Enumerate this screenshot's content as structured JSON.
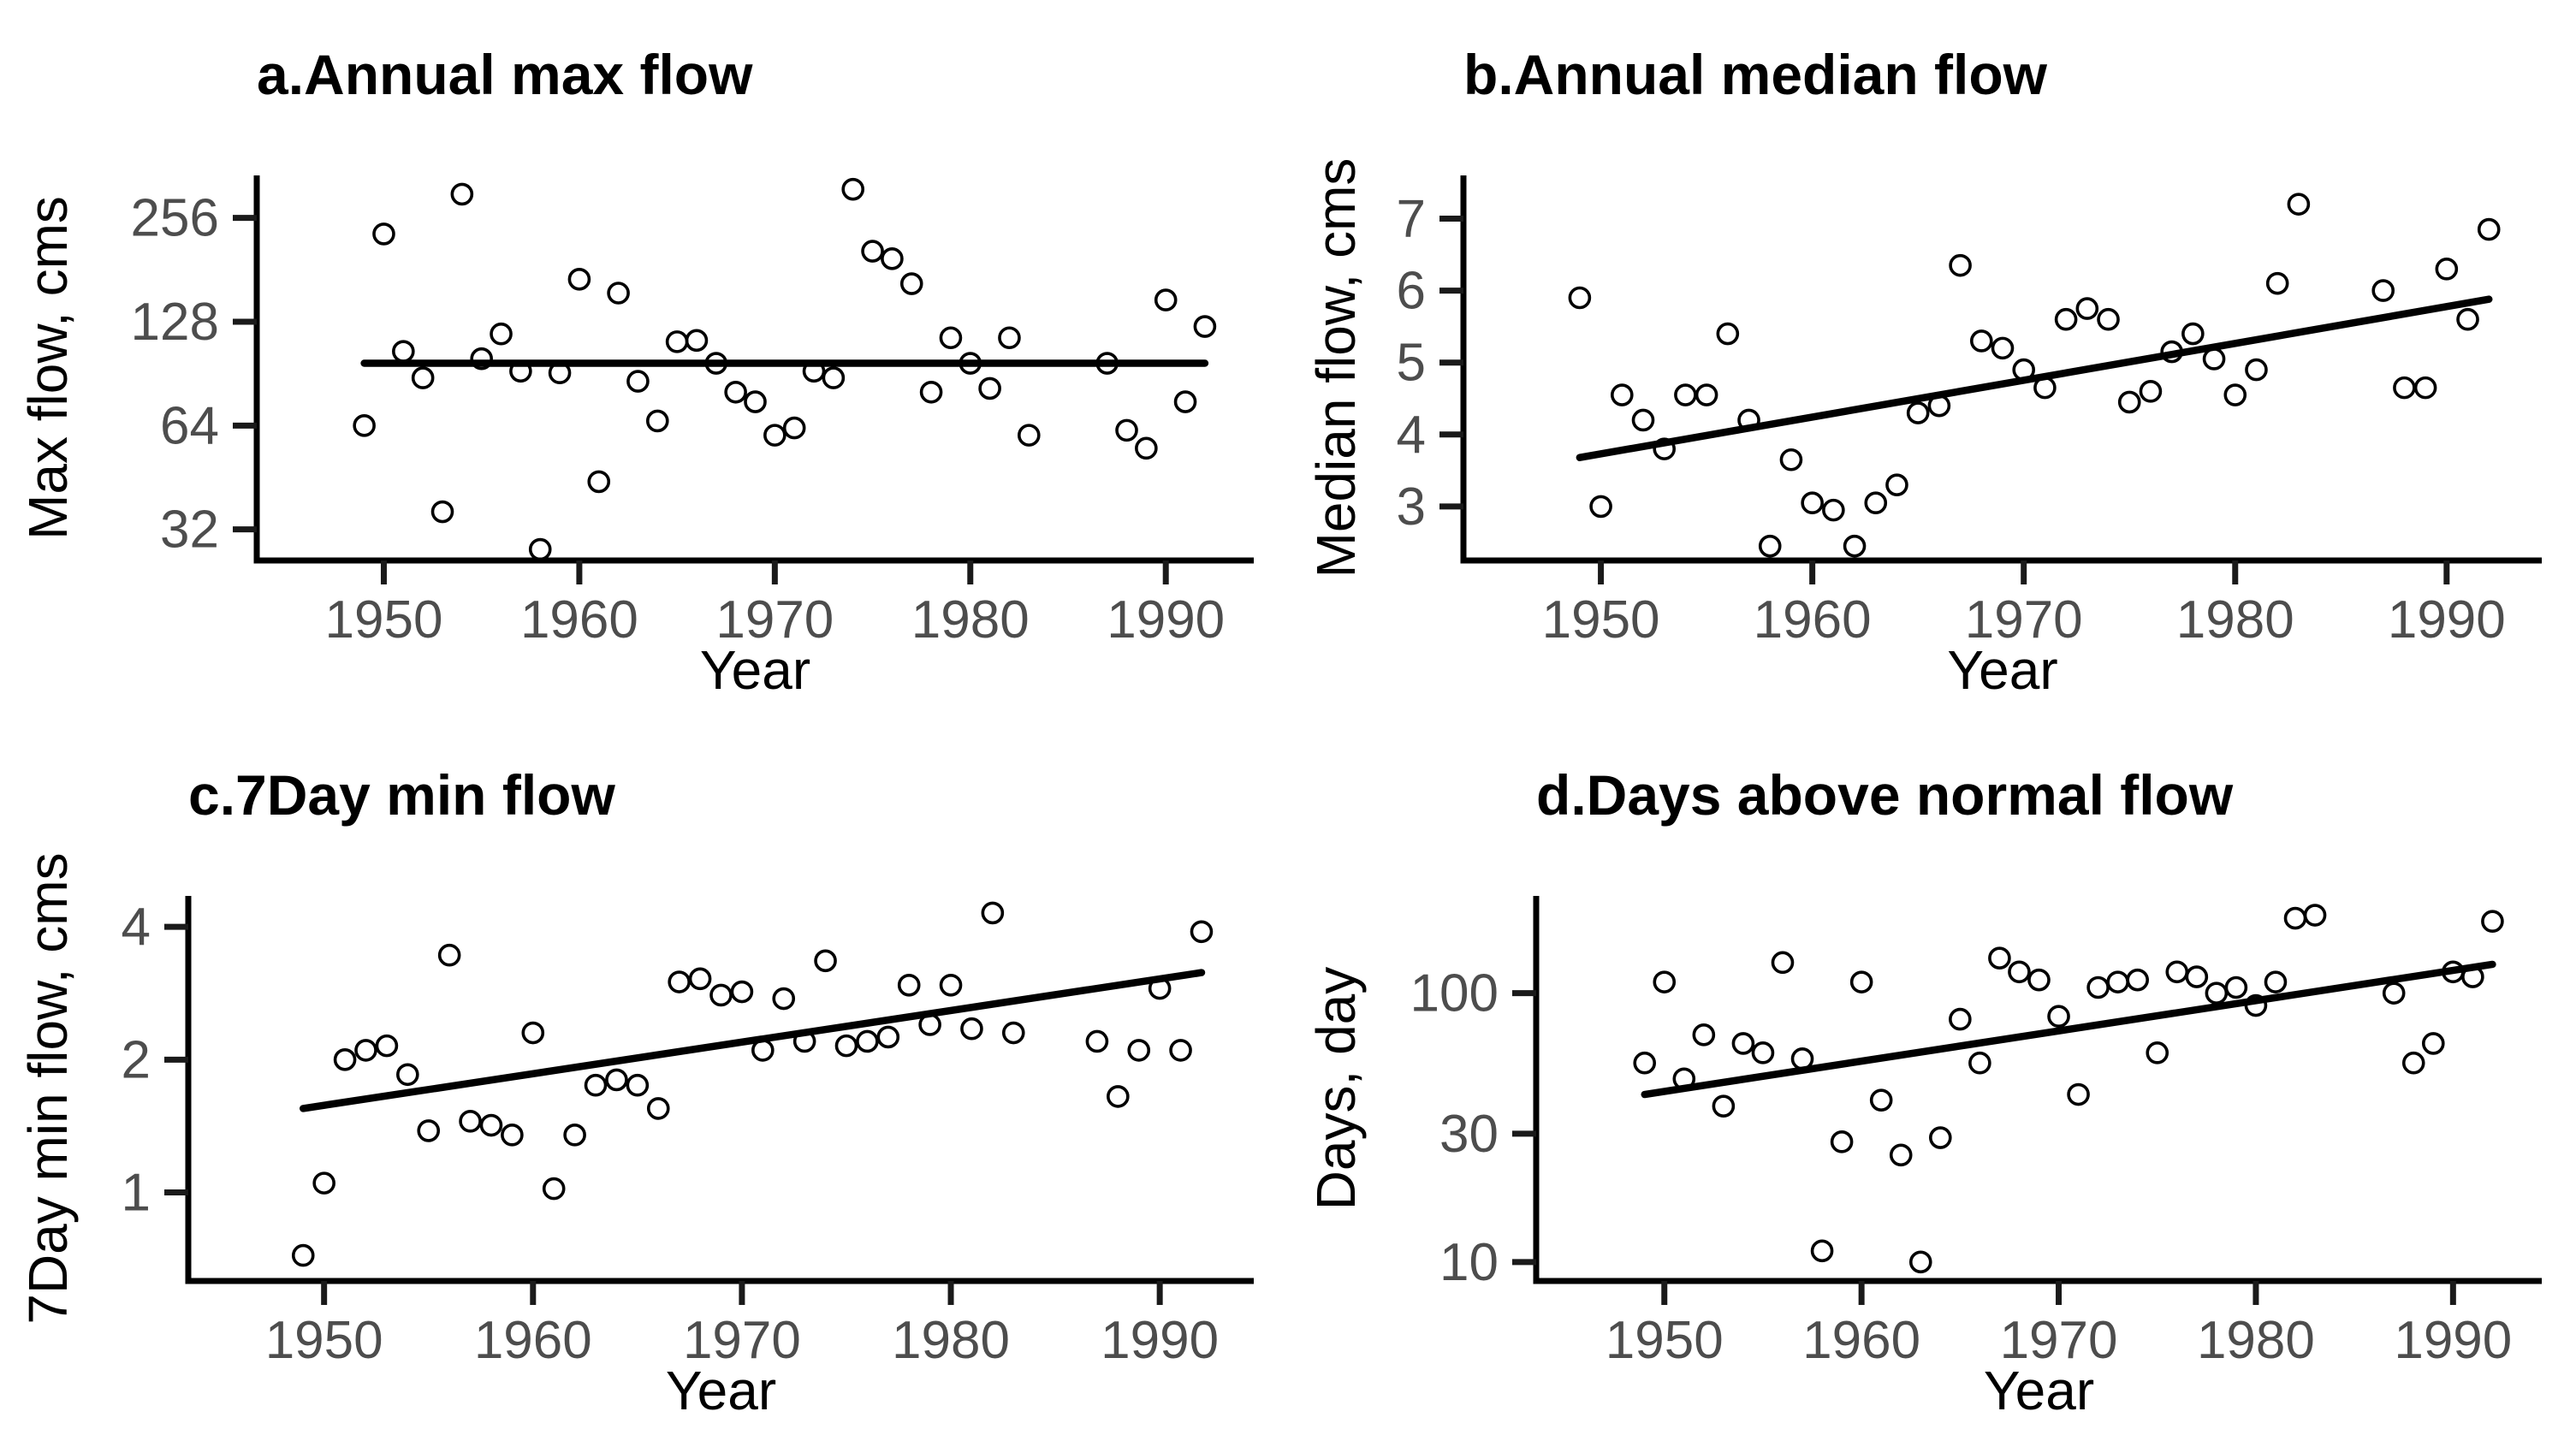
{
  "figure": {
    "background_color": "#ffffff",
    "point_color": "#000000",
    "trend_color": "#000000",
    "tick_label_color": "#4d4d4d",
    "title_color": "#000000"
  },
  "chart_data": [
    {
      "panel": "a",
      "type": "scatter",
      "title": "a.Annual max flow",
      "xlabel": "Year",
      "ylabel": "Max flow, cms",
      "yscale": "log2",
      "yticks": [
        32,
        64,
        128,
        256
      ],
      "ylim": [
        26,
        340
      ],
      "xticks": [
        1950,
        1960,
        1970,
        1980,
        1990
      ],
      "xlim": [
        1943.5,
        1994.5
      ],
      "legend": "none",
      "grid": "off",
      "trend": {
        "x": [
          1949,
          1992
        ],
        "y": [
          97,
          97
        ]
      },
      "x": [
        1949,
        1950,
        1951,
        1952,
        1953,
        1954,
        1955,
        1956,
        1957,
        1958,
        1959,
        1960,
        1961,
        1962,
        1963,
        1964,
        1965,
        1966,
        1967,
        1968,
        1969,
        1970,
        1971,
        1972,
        1973,
        1974,
        1975,
        1976,
        1977,
        1978,
        1979,
        1980,
        1981,
        1982,
        1983,
        1987,
        1988,
        1989,
        1990,
        1991,
        1992
      ],
      "y": [
        64,
        230,
        105,
        88,
        36,
        300,
        100,
        118,
        92,
        28,
        91,
        170,
        44,
        155,
        86,
        66,
        112,
        113,
        97,
        80,
        75,
        60,
        63,
        92,
        88,
        310,
        205,
        195,
        165,
        80,
        115,
        97,
        82,
        115,
        60,
        97,
        62,
        55,
        148,
        75,
        124
      ]
    },
    {
      "panel": "b",
      "type": "scatter",
      "title": "b.Annual median flow",
      "xlabel": "Year",
      "ylabel": "Median flow, cms",
      "yscale": "linear",
      "yticks": [
        3,
        4,
        5,
        6,
        7
      ],
      "ylim": [
        2.25,
        7.6
      ],
      "xticks": [
        1950,
        1960,
        1970,
        1980,
        1990
      ],
      "xlim": [
        1943.5,
        1994.5
      ],
      "legend": "none",
      "grid": "off",
      "trend": {
        "x": [
          1949,
          1992
        ],
        "y": [
          3.68,
          5.88
        ]
      },
      "x": [
        1949,
        1950,
        1951,
        1952,
        1953,
        1954,
        1955,
        1956,
        1957,
        1958,
        1959,
        1960,
        1961,
        1962,
        1963,
        1964,
        1965,
        1966,
        1967,
        1968,
        1969,
        1970,
        1971,
        1972,
        1973,
        1974,
        1975,
        1976,
        1977,
        1978,
        1979,
        1980,
        1981,
        1982,
        1983,
        1987,
        1988,
        1989,
        1990,
        1991,
        1992
      ],
      "y": [
        5.9,
        3.0,
        4.55,
        4.2,
        3.8,
        4.55,
        4.55,
        5.4,
        4.2,
        2.45,
        3.65,
        3.05,
        2.95,
        2.45,
        3.05,
        3.3,
        4.3,
        4.4,
        6.35,
        5.3,
        5.2,
        4.9,
        4.65,
        5.6,
        5.75,
        5.6,
        4.45,
        4.6,
        5.15,
        5.4,
        5.05,
        4.55,
        4.9,
        6.1,
        7.2,
        6.0,
        4.65,
        4.65,
        6.3,
        5.6,
        6.85
      ]
    },
    {
      "panel": "c",
      "type": "scatter",
      "title": "c.7Day min flow",
      "xlabel": "Year",
      "ylabel": "7Day min flow, cms",
      "yscale": "log2",
      "yticks": [
        1,
        2,
        4
      ],
      "ylim": [
        0.63,
        4.7
      ],
      "xticks": [
        1950,
        1960,
        1970,
        1980,
        1990
      ],
      "xlim": [
        1943.5,
        1994.5
      ],
      "legend": "none",
      "grid": "off",
      "trend": {
        "x": [
          1949,
          1992
        ],
        "y": [
          1.55,
          3.15
        ]
      },
      "x": [
        1949,
        1950,
        1951,
        1952,
        1953,
        1954,
        1955,
        1956,
        1957,
        1958,
        1959,
        1960,
        1961,
        1962,
        1963,
        1964,
        1965,
        1966,
        1967,
        1968,
        1969,
        1970,
        1971,
        1972,
        1973,
        1974,
        1975,
        1976,
        1977,
        1978,
        1979,
        1980,
        1981,
        1982,
        1983,
        1987,
        1988,
        1989,
        1990,
        1991,
        1992
      ],
      "y": [
        0.72,
        1.05,
        2.0,
        2.1,
        2.15,
        1.85,
        1.38,
        3.45,
        1.45,
        1.42,
        1.35,
        2.3,
        1.02,
        1.35,
        1.75,
        1.8,
        1.75,
        1.55,
        3.0,
        3.05,
        2.8,
        2.85,
        2.1,
        2.75,
        2.2,
        3.35,
        2.15,
        2.2,
        2.25,
        2.95,
        2.4,
        2.95,
        2.35,
        4.3,
        2.3,
        2.2,
        1.65,
        2.1,
        2.9,
        2.1,
        3.9
      ]
    },
    {
      "panel": "d",
      "type": "scatter",
      "title": "d.Days above normal flow",
      "xlabel": "Year",
      "ylabel": "Days, day",
      "yscale": "log",
      "yticks": [
        10,
        30,
        100
      ],
      "ylim": [
        8.5,
        230
      ],
      "xticks": [
        1950,
        1960,
        1970,
        1980,
        1990
      ],
      "xlim": [
        1943.5,
        1994.5
      ],
      "legend": "none",
      "grid": "off",
      "trend": {
        "x": [
          1949,
          1992
        ],
        "y": [
          42,
          128
        ]
      },
      "x": [
        1949,
        1950,
        1951,
        1952,
        1953,
        1954,
        1955,
        1956,
        1957,
        1958,
        1959,
        1960,
        1961,
        1962,
        1963,
        1964,
        1965,
        1966,
        1967,
        1968,
        1969,
        1970,
        1971,
        1972,
        1973,
        1974,
        1975,
        1976,
        1977,
        1978,
        1979,
        1980,
        1981,
        1982,
        1983,
        1987,
        1988,
        1989,
        1990,
        1991,
        1992
      ],
      "y": [
        55,
        110,
        48,
        70,
        38,
        65,
        60,
        130,
        57,
        11,
        28,
        110,
        40,
        25,
        10,
        29,
        80,
        55,
        135,
        120,
        112,
        82,
        42,
        105,
        110,
        112,
        60,
        120,
        115,
        100,
        105,
        90,
        110,
        190,
        195,
        100,
        55,
        65,
        120,
        115,
        185
      ]
    }
  ]
}
